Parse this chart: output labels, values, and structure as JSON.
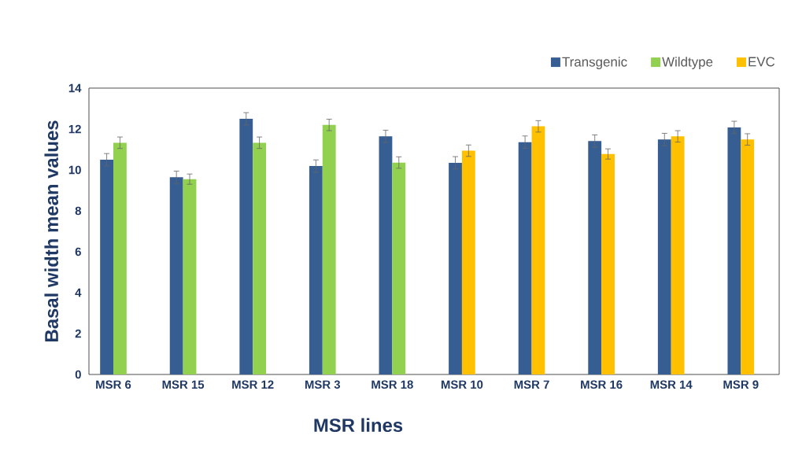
{
  "chart_data": {
    "type": "bar",
    "xlabel": "MSR lines",
    "ylabel": "Basal width mean values",
    "categories": [
      "MSR 6",
      "MSR 15",
      "MSR 12",
      "MSR 3",
      "MSR 18",
      "MSR 10",
      "MSR 7",
      "MSR 16",
      "MSR 14",
      "MSR 9"
    ],
    "series": [
      {
        "name": "Transgenic",
        "color": "#375e92",
        "values": [
          10.5,
          9.64,
          12.5,
          10.19,
          11.64,
          10.35,
          11.36,
          11.41,
          11.49,
          12.08
        ],
        "errors": [
          0.3,
          0.3,
          0.3,
          0.3,
          0.3,
          0.3,
          0.3,
          0.3,
          0.3,
          0.3
        ]
      },
      {
        "name": "Wildtype",
        "color": "#92d050",
        "values": [
          11.33,
          9.55,
          11.33,
          12.2,
          10.36,
          null,
          null,
          null,
          null,
          null
        ],
        "errors": [
          0.28,
          0.25,
          0.28,
          0.28,
          0.28,
          null,
          null,
          null,
          null,
          null
        ]
      },
      {
        "name": "EVC",
        "color": "#ffc000",
        "values": [
          null,
          null,
          null,
          null,
          null,
          10.94,
          12.13,
          10.78,
          11.64,
          11.49
        ],
        "errors": [
          null,
          null,
          null,
          null,
          null,
          0.28,
          0.28,
          0.25,
          0.28,
          0.28
        ]
      }
    ],
    "ylim": [
      0,
      14
    ],
    "yticks": [
      0,
      2,
      4,
      6,
      8,
      10,
      12,
      14
    ],
    "legend": "top right"
  }
}
